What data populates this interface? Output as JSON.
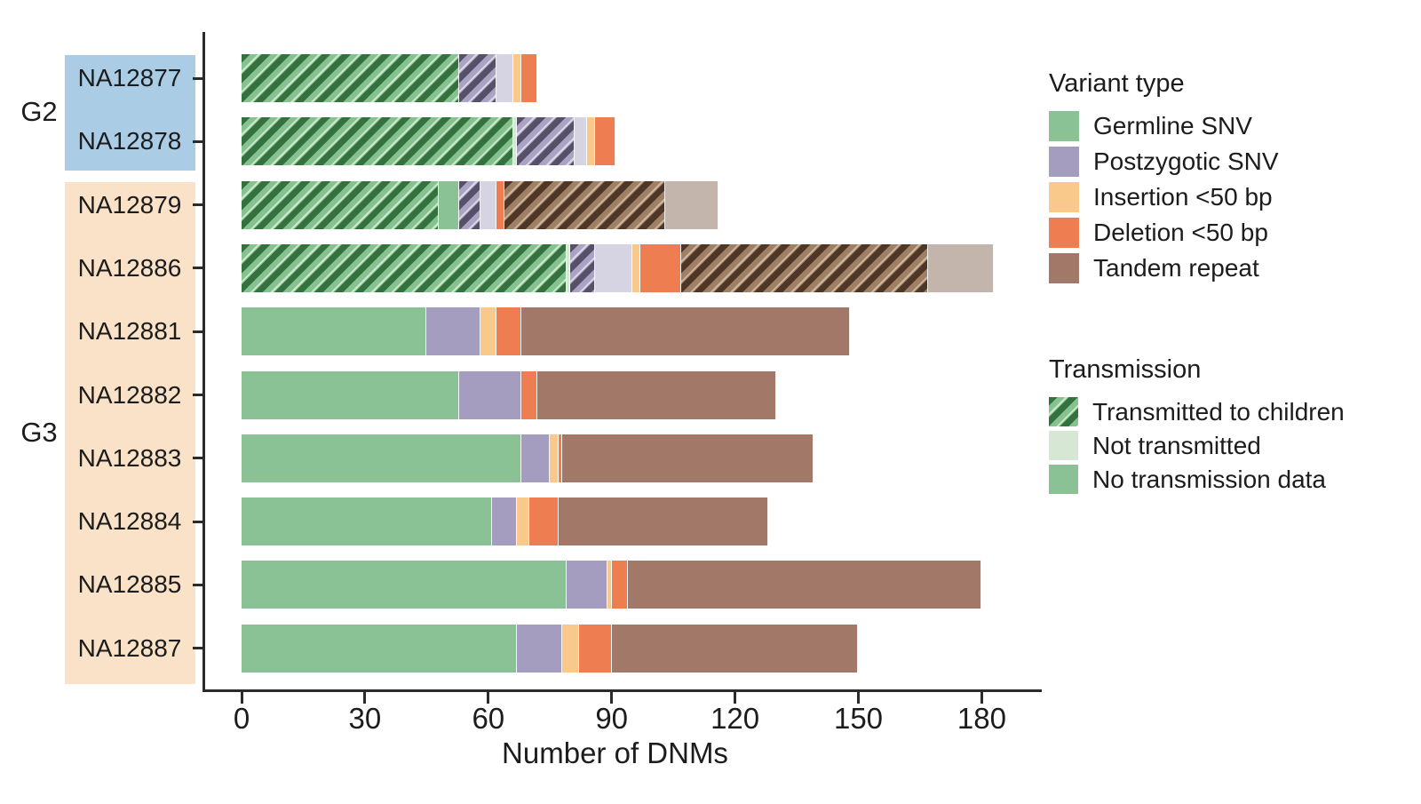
{
  "chart_data": {
    "type": "bar",
    "orientation": "horizontal",
    "stacked": true,
    "title": "",
    "xlabel": "Number of DNMs",
    "x_ticks": [
      0,
      30,
      60,
      90,
      120,
      150,
      180
    ],
    "xlim": [
      0,
      194
    ],
    "grid": false,
    "groups": [
      {
        "label": "G2",
        "rows": [
          "NA12877",
          "NA12878"
        ]
      },
      {
        "label": "G3",
        "rows": [
          "NA12879",
          "NA12886",
          "NA12881",
          "NA12882",
          "NA12883",
          "NA12884",
          "NA12885",
          "NA12887"
        ]
      }
    ],
    "rows": [
      {
        "id": "NA12877",
        "group": "G2",
        "total": 72,
        "segments": [
          {
            "variant": "germline",
            "transmission": "transmitted",
            "value": 53
          },
          {
            "variant": "postzygotic",
            "transmission": "transmitted",
            "value": 9
          },
          {
            "variant": "postzygotic",
            "transmission": "not_transmitted",
            "value": 4
          },
          {
            "variant": "insertion",
            "transmission": "no_data",
            "value": 2
          },
          {
            "variant": "deletion",
            "transmission": "no_data",
            "value": 4
          }
        ]
      },
      {
        "id": "NA12878",
        "group": "G2",
        "total": 91,
        "segments": [
          {
            "variant": "germline",
            "transmission": "transmitted",
            "value": 66
          },
          {
            "variant": "germline",
            "transmission": "not_transmitted",
            "value": 1
          },
          {
            "variant": "postzygotic",
            "transmission": "transmitted",
            "value": 14
          },
          {
            "variant": "postzygotic",
            "transmission": "not_transmitted",
            "value": 3
          },
          {
            "variant": "insertion",
            "transmission": "no_data",
            "value": 2
          },
          {
            "variant": "deletion",
            "transmission": "no_data",
            "value": 5
          }
        ]
      },
      {
        "id": "NA12879",
        "group": "G3",
        "total": 116,
        "segments": [
          {
            "variant": "germline",
            "transmission": "transmitted",
            "value": 48
          },
          {
            "variant": "germline",
            "transmission": "no_data",
            "value": 5
          },
          {
            "variant": "postzygotic",
            "transmission": "transmitted",
            "value": 5
          },
          {
            "variant": "postzygotic",
            "transmission": "not_transmitted",
            "value": 4
          },
          {
            "variant": "deletion",
            "transmission": "no_data",
            "value": 2
          },
          {
            "variant": "tandem",
            "transmission": "transmitted",
            "value": 39
          },
          {
            "variant": "tandem",
            "transmission": "not_transmitted",
            "value": 13
          }
        ]
      },
      {
        "id": "NA12886",
        "group": "G3",
        "total": 183,
        "segments": [
          {
            "variant": "germline",
            "transmission": "transmitted",
            "value": 79
          },
          {
            "variant": "germline",
            "transmission": "not_transmitted",
            "value": 1
          },
          {
            "variant": "postzygotic",
            "transmission": "transmitted",
            "value": 6
          },
          {
            "variant": "postzygotic",
            "transmission": "not_transmitted",
            "value": 9
          },
          {
            "variant": "insertion",
            "transmission": "no_data",
            "value": 2
          },
          {
            "variant": "deletion",
            "transmission": "no_data",
            "value": 10
          },
          {
            "variant": "tandem",
            "transmission": "transmitted",
            "value": 60
          },
          {
            "variant": "tandem",
            "transmission": "not_transmitted",
            "value": 16
          }
        ]
      },
      {
        "id": "NA12881",
        "group": "G3",
        "total": 148,
        "segments": [
          {
            "variant": "germline",
            "transmission": "no_data",
            "value": 45
          },
          {
            "variant": "postzygotic",
            "transmission": "no_data",
            "value": 13
          },
          {
            "variant": "insertion",
            "transmission": "no_data",
            "value": 4
          },
          {
            "variant": "deletion",
            "transmission": "no_data",
            "value": 6
          },
          {
            "variant": "tandem",
            "transmission": "no_data",
            "value": 80
          }
        ]
      },
      {
        "id": "NA12882",
        "group": "G3",
        "total": 130,
        "segments": [
          {
            "variant": "germline",
            "transmission": "no_data",
            "value": 53
          },
          {
            "variant": "postzygotic",
            "transmission": "no_data",
            "value": 15
          },
          {
            "variant": "deletion",
            "transmission": "no_data",
            "value": 4
          },
          {
            "variant": "tandem",
            "transmission": "no_data",
            "value": 58
          }
        ]
      },
      {
        "id": "NA12883",
        "group": "G3",
        "total": 139,
        "segments": [
          {
            "variant": "germline",
            "transmission": "no_data",
            "value": 68
          },
          {
            "variant": "postzygotic",
            "transmission": "no_data",
            "value": 7
          },
          {
            "variant": "insertion",
            "transmission": "no_data",
            "value": 2
          },
          {
            "variant": "deletion",
            "transmission": "no_data",
            "value": 1
          },
          {
            "variant": "tandem",
            "transmission": "no_data",
            "value": 61
          }
        ]
      },
      {
        "id": "NA12884",
        "group": "G3",
        "total": 128,
        "segments": [
          {
            "variant": "germline",
            "transmission": "no_data",
            "value": 61
          },
          {
            "variant": "postzygotic",
            "transmission": "no_data",
            "value": 6
          },
          {
            "variant": "insertion",
            "transmission": "no_data",
            "value": 3
          },
          {
            "variant": "deletion",
            "transmission": "no_data",
            "value": 7
          },
          {
            "variant": "tandem",
            "transmission": "no_data",
            "value": 51
          }
        ]
      },
      {
        "id": "NA12885",
        "group": "G3",
        "total": 180,
        "segments": [
          {
            "variant": "germline",
            "transmission": "no_data",
            "value": 79
          },
          {
            "variant": "postzygotic",
            "transmission": "no_data",
            "value": 10
          },
          {
            "variant": "insertion",
            "transmission": "no_data",
            "value": 1
          },
          {
            "variant": "deletion",
            "transmission": "no_data",
            "value": 4
          },
          {
            "variant": "tandem",
            "transmission": "no_data",
            "value": 86
          }
        ]
      },
      {
        "id": "NA12887",
        "group": "G3",
        "total": 150,
        "segments": [
          {
            "variant": "germline",
            "transmission": "no_data",
            "value": 67
          },
          {
            "variant": "postzygotic",
            "transmission": "no_data",
            "value": 11
          },
          {
            "variant": "insertion",
            "transmission": "no_data",
            "value": 4
          },
          {
            "variant": "deletion",
            "transmission": "no_data",
            "value": 8
          },
          {
            "variant": "tandem",
            "transmission": "no_data",
            "value": 60
          }
        ]
      }
    ]
  },
  "legend": {
    "variant": {
      "title": "Variant type",
      "items": [
        {
          "label": "Germline SNV",
          "style": "germline-nd",
          "color": "#8bc295"
        },
        {
          "label": "Postzygotic SNV",
          "style": "postzygotic-nd",
          "color": "#a59dbf"
        },
        {
          "label": "Insertion <50 bp",
          "style": "insertion-nd",
          "color": "#f8c98b"
        },
        {
          "label": "Deletion <50 bp",
          "style": "deletion-nd",
          "color": "#ee7e52"
        },
        {
          "label": "Tandem repeat",
          "style": "tandem-nd",
          "color": "#a27868"
        }
      ]
    },
    "transmission": {
      "title": "Transmission",
      "items": [
        {
          "label": "Transmitted to children",
          "style": "germline-t",
          "color": "hatched-green"
        },
        {
          "label": "Not transmitted",
          "style": "germline-nt",
          "color": "#d6e8d3"
        },
        {
          "label": "No transmission data",
          "style": "germline-nd",
          "color": "#8bc295"
        }
      ]
    }
  },
  "colors": {
    "g2_box": "#aacce5",
    "g3_box": "#f9e2c7",
    "axis": "#2b2b2b"
  }
}
